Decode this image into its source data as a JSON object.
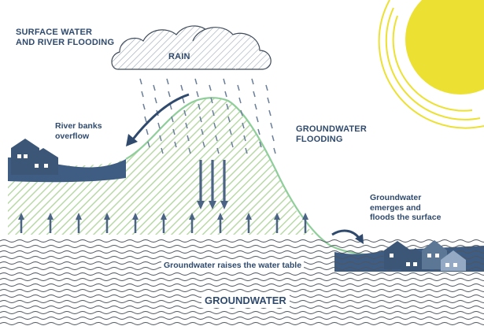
{
  "labels": {
    "surface_flooding_title": [
      "SURFACE WATER",
      "AND RIVER FLOODING"
    ],
    "rain": "RAIN",
    "river_banks": [
      "River banks",
      "overflow"
    ],
    "groundwater_flooding": [
      "GROUNDWATER",
      "FLOODING"
    ],
    "emerges": [
      "Groundwater",
      "emerges and",
      "floods the surface"
    ],
    "water_table": "Groundwater raises the water table",
    "groundwater": "GROUNDWATER"
  },
  "colors": {
    "navy": "#2f4a6d",
    "arrow_blue": "#4b6485",
    "slope_green": "#8fce9a",
    "hatch_green": "#b9d9a8",
    "sun_yellow": "#ece132",
    "wave_gray": "#4e5660",
    "house_dark": "#3c5678",
    "house_mid": "#5c7696",
    "house_light": "#93a9c4",
    "flood_water": "#3f5d83"
  },
  "icons": [
    "sun-icon",
    "rain-cloud-icon",
    "house-icon",
    "left-curved-arrow-icon",
    "right-curved-arrow-icon",
    "up-arrow-icon",
    "down-arrow-icon"
  ]
}
